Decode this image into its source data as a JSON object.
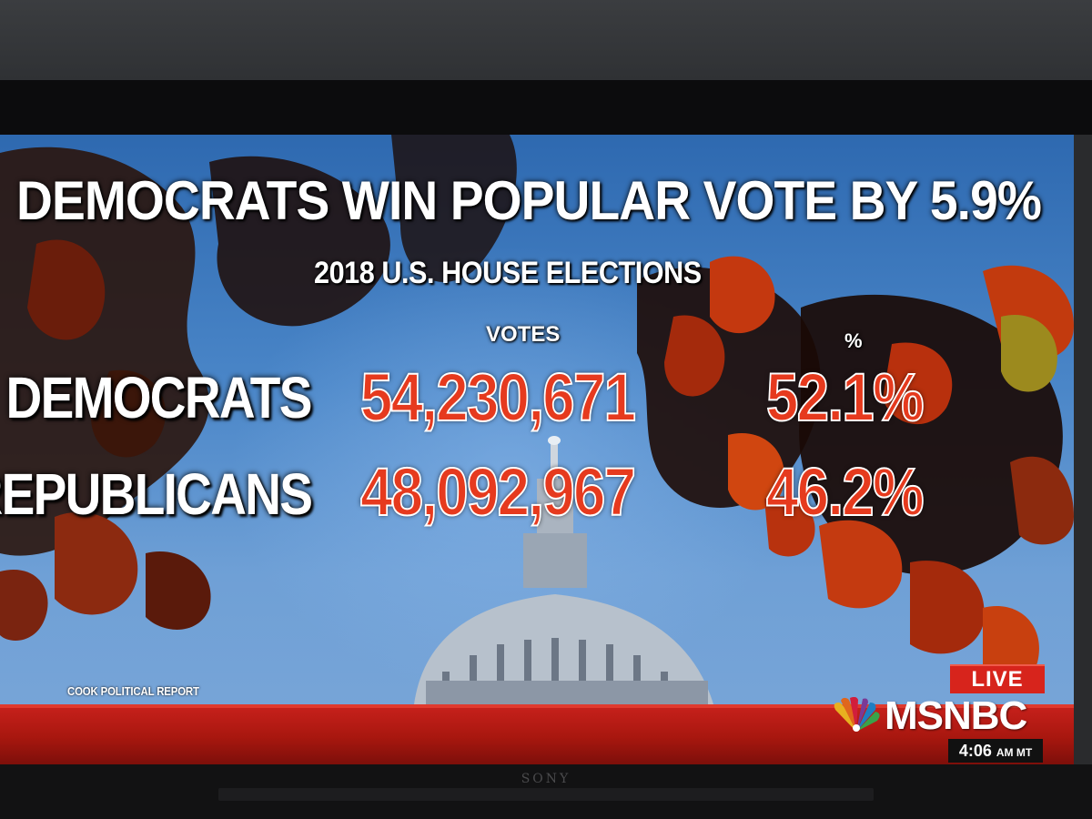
{
  "broadcast": {
    "headline": "DEMOCRATS WIN POPULAR VOTE BY 5.9%",
    "subheadline": "2018 U.S. HOUSE ELECTIONS",
    "columns": {
      "votes": "VOTES",
      "percent": "%"
    },
    "rows": [
      {
        "party": "DEMOCRATS",
        "votes": "54,230,671",
        "percent": "52.1%"
      },
      {
        "party": "REPUBLICANS",
        "votes": "48,092,967",
        "percent": "46.2%"
      }
    ],
    "source": "COOK POLITICAL REPORT"
  },
  "branding": {
    "live_label": "LIVE",
    "network": "MSNBC",
    "time": "4:06",
    "time_suffix": "AM MT",
    "tv_brand": "SONY"
  },
  "colors": {
    "accent_red": "#e63a1e",
    "live_red": "#d7241c",
    "sky_blue": "#4a86c8"
  },
  "icons": [
    "nbc-peacock-icon"
  ]
}
